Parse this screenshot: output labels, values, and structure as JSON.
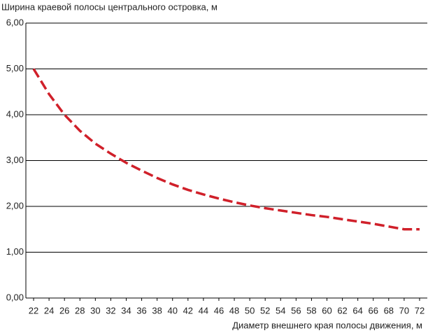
{
  "chart_data": {
    "type": "line",
    "y_label": "Ширина краевой полосы центрального островка, м",
    "x_label": "Диаметр внешнего края полосы движения, м",
    "x": [
      22,
      24,
      26,
      28,
      30,
      32,
      34,
      36,
      38,
      40,
      42,
      44,
      46,
      48,
      50,
      52,
      54,
      56,
      58,
      60,
      62,
      64,
      66,
      68,
      70,
      72
    ],
    "series": [
      {
        "color": "#d0202a",
        "values": [
          5.0,
          4.45,
          4.0,
          3.65,
          3.37,
          3.15,
          2.95,
          2.78,
          2.62,
          2.48,
          2.36,
          2.26,
          2.17,
          2.09,
          2.02,
          1.96,
          1.91,
          1.86,
          1.81,
          1.77,
          1.72,
          1.67,
          1.62,
          1.56,
          1.5,
          1.5
        ]
      }
    ],
    "xlim": [
      21,
      73
    ],
    "xticks": [
      22,
      24,
      26,
      28,
      30,
      32,
      34,
      36,
      38,
      40,
      42,
      44,
      46,
      48,
      50,
      52,
      54,
      56,
      58,
      60,
      62,
      64,
      66,
      68,
      70,
      72
    ],
    "ylim": [
      0,
      6
    ],
    "yticks": [
      {
        "value": 0,
        "label": "0,00"
      },
      {
        "value": 1,
        "label": "1,00"
      },
      {
        "value": 2,
        "label": "2,00"
      },
      {
        "value": 3,
        "label": "3,00"
      },
      {
        "value": 4,
        "label": "4,00"
      },
      {
        "value": 5,
        "label": "5,00"
      },
      {
        "value": 6,
        "label": "6,00"
      }
    ],
    "grid": true,
    "dashed": true
  }
}
